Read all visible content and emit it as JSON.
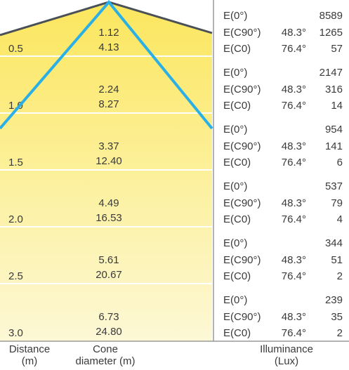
{
  "rows": [
    {
      "distance": "0.5",
      "cone_top": "1.12",
      "cone_bottom": "4.13",
      "e0_label": "E(0°)",
      "e0_value": "8589",
      "c90_label": "E(C90°)",
      "c90_angle": "48.3°",
      "c90_value": "1265",
      "c0_label": "E(C0)",
      "c0_angle": "76.4°",
      "c0_value": "57"
    },
    {
      "distance": "1.0",
      "cone_top": "2.24",
      "cone_bottom": "8.27",
      "e0_label": "E(0°)",
      "e0_value": "2147",
      "c90_label": "E(C90°)",
      "c90_angle": "48.3°",
      "c90_value": "316",
      "c0_label": "E(C0)",
      "c0_angle": "76.4°",
      "c0_value": "14"
    },
    {
      "distance": "1.5",
      "cone_top": "3.37",
      "cone_bottom": "12.40",
      "e0_label": "E(0°)",
      "e0_value": "954",
      "c90_label": "E(C90°)",
      "c90_angle": "48.3°",
      "c90_value": "141",
      "c0_label": "E(C0)",
      "c0_angle": "76.4°",
      "c0_value": "6"
    },
    {
      "distance": "2.0",
      "cone_top": "4.49",
      "cone_bottom": "16.53",
      "e0_label": "E(0°)",
      "e0_value": "537",
      "c90_label": "E(C90°)",
      "c90_angle": "48.3°",
      "c90_value": "79",
      "c0_label": "E(C0)",
      "c0_angle": "76.4°",
      "c0_value": "4"
    },
    {
      "distance": "2.5",
      "cone_top": "5.61",
      "cone_bottom": "20.67",
      "e0_label": "E(0°)",
      "e0_value": "344",
      "c90_label": "E(C90°)",
      "c90_angle": "48.3°",
      "c90_value": "51",
      "c0_label": "E(C0)",
      "c0_angle": "76.4°",
      "c0_value": "2"
    },
    {
      "distance": "3.0",
      "cone_top": "6.73",
      "cone_bottom": "24.80",
      "e0_label": "E(0°)",
      "e0_value": "239",
      "c90_label": "E(C90°)",
      "c90_angle": "48.3°",
      "c90_value": "35",
      "c0_label": "E(C0)",
      "c0_angle": "76.4°",
      "c0_value": "2"
    }
  ],
  "footer": {
    "distance": [
      "Distance",
      "(m)"
    ],
    "cone": [
      "Cone",
      "diameter (m)"
    ],
    "illuminance": [
      "Illuminance",
      "(Lux)"
    ]
  }
}
